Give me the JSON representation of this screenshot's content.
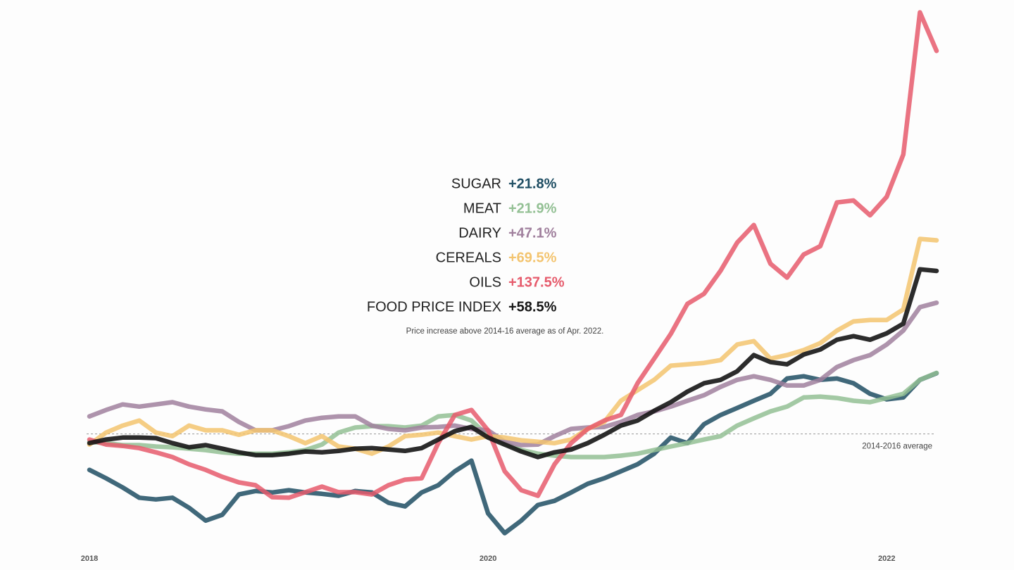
{
  "chart_data": {
    "type": "line",
    "subtitle": "Price increase above 2014-16 average as of Apr. 2022.",
    "categories": [
      "2018",
      null,
      null,
      null,
      null,
      null,
      null,
      null,
      null,
      null,
      null,
      null,
      null,
      null,
      null,
      null,
      null,
      null,
      null,
      null,
      null,
      null,
      null,
      null,
      "2020",
      null,
      null,
      null,
      null,
      null,
      null,
      null,
      null,
      null,
      null,
      null,
      null,
      null,
      null,
      null,
      null,
      null,
      null,
      null,
      null,
      null,
      null,
      null,
      "2022",
      null,
      null,
      null
    ],
    "ylim": [
      -40,
      155
    ],
    "baseline": {
      "value": 0,
      "label": "2014-2016 average"
    },
    "series": [
      {
        "name": "SUGAR",
        "color": "#1f4e63",
        "values": [
          -12.9,
          -15.9,
          -19.2,
          -22.9,
          -23.5,
          -22.9,
          -26.5,
          -31.1,
          -29.0,
          -21.7,
          -20.5,
          -21.0,
          -20.2,
          -21.0,
          -21.5,
          -22.2,
          -20.5,
          -21.0,
          -24.7,
          -26.0,
          -21.0,
          -18.4,
          -13.4,
          -9.6,
          -28.5,
          -35.6,
          -31.1,
          -25.5,
          -24.0,
          -21.0,
          -17.9,
          -15.9,
          -13.4,
          -10.9,
          -7.1,
          -1.3,
          -3.3,
          3.5,
          6.8,
          9.3,
          11.9,
          14.4,
          19.9,
          20.7,
          19.4,
          19.9,
          18.2,
          14.4,
          12.4,
          13.1,
          19.4,
          21.8
        ],
        "value_labels": [
          null,
          null,
          null,
          null,
          null,
          null,
          null,
          null,
          null,
          null,
          null,
          null,
          null,
          null,
          null,
          null,
          null,
          null,
          null,
          null,
          null,
          null,
          null,
          null,
          null,
          null,
          null,
          null,
          null,
          null,
          null,
          null,
          null,
          null,
          null,
          null,
          null,
          null,
          null,
          null,
          null,
          null,
          null,
          null,
          null,
          null,
          null,
          null,
          null,
          null,
          null,
          "+21.8%"
        ]
      },
      {
        "name": "MEAT",
        "color": "#93c094",
        "values": [
          -2.8,
          -3.3,
          -4.0,
          -4.0,
          -4.5,
          -4.8,
          -5.3,
          -5.8,
          -6.6,
          -7.1,
          -7.1,
          -7.1,
          -6.6,
          -5.8,
          -3.8,
          0.5,
          2.3,
          2.8,
          2.8,
          2.3,
          3.0,
          6.3,
          6.8,
          4.8,
          -0.8,
          -3.3,
          -5.8,
          -7.1,
          -7.8,
          -8.3,
          -8.3,
          -8.3,
          -7.8,
          -7.1,
          -5.8,
          -4.5,
          -3.3,
          -2.0,
          -0.8,
          3.0,
          5.6,
          8.1,
          9.8,
          13.1,
          13.4,
          12.9,
          11.9,
          11.4,
          12.9,
          14.4,
          19.4,
          21.9
        ],
        "value_labels": [
          null,
          null,
          null,
          null,
          null,
          null,
          null,
          null,
          null,
          null,
          null,
          null,
          null,
          null,
          null,
          null,
          null,
          null,
          null,
          null,
          null,
          null,
          null,
          null,
          null,
          null,
          null,
          null,
          null,
          null,
          null,
          null,
          null,
          null,
          null,
          null,
          null,
          null,
          null,
          null,
          null,
          null,
          null,
          null,
          null,
          null,
          null,
          null,
          null,
          null,
          null,
          "+21.9%"
        ]
      },
      {
        "name": "DAIRY",
        "color": "#a0809d",
        "values": [
          6.3,
          8.6,
          10.6,
          9.8,
          10.6,
          11.4,
          9.8,
          8.8,
          8.1,
          4.3,
          1.3,
          1.3,
          2.8,
          4.8,
          5.8,
          6.3,
          6.3,
          3.0,
          1.8,
          1.3,
          2.3,
          2.5,
          3.0,
          1.8,
          1.3,
          -2.8,
          -4.0,
          -3.8,
          -0.8,
          1.8,
          2.3,
          2.5,
          4.3,
          6.8,
          8.1,
          9.8,
          11.9,
          13.9,
          16.9,
          19.4,
          20.7,
          19.4,
          17.4,
          17.4,
          19.4,
          24.0,
          26.5,
          28.3,
          32.1,
          37.1,
          45.5,
          47.1
        ],
        "value_labels": [
          null,
          null,
          null,
          null,
          null,
          null,
          null,
          null,
          null,
          null,
          null,
          null,
          null,
          null,
          null,
          null,
          null,
          null,
          null,
          null,
          null,
          null,
          null,
          null,
          null,
          null,
          null,
          null,
          null,
          null,
          null,
          null,
          null,
          null,
          null,
          null,
          null,
          null,
          null,
          null,
          null,
          null,
          null,
          null,
          null,
          null,
          null,
          null,
          null,
          null,
          null,
          "+47.1%"
        ]
      },
      {
        "name": "CEREALS",
        "color": "#f3c46f",
        "values": [
          -3.8,
          0.5,
          3.0,
          4.8,
          0.5,
          -0.8,
          3.0,
          1.3,
          1.3,
          -0.3,
          1.3,
          1.3,
          -0.8,
          -3.3,
          -0.8,
          -4.5,
          -5.3,
          -7.1,
          -4.5,
          -0.8,
          -0.3,
          0.5,
          -0.8,
          -2.0,
          -0.8,
          -1.3,
          -2.3,
          -2.8,
          -3.3,
          -2.0,
          1.8,
          4.3,
          11.9,
          15.7,
          19.4,
          24.5,
          25.0,
          25.5,
          26.5,
          32.1,
          33.3,
          27.0,
          28.3,
          30.1,
          32.6,
          37.1,
          40.4,
          40.9,
          40.9,
          44.7,
          70.0,
          69.5
        ],
        "value_labels": [
          null,
          null,
          null,
          null,
          null,
          null,
          null,
          null,
          null,
          null,
          null,
          null,
          null,
          null,
          null,
          null,
          null,
          null,
          null,
          null,
          null,
          null,
          null,
          null,
          null,
          null,
          null,
          null,
          null,
          null,
          null,
          null,
          null,
          null,
          null,
          null,
          null,
          null,
          null,
          null,
          null,
          null,
          null,
          null,
          null,
          null,
          null,
          null,
          null,
          null,
          null,
          "+69.5%"
        ]
      },
      {
        "name": "OILS",
        "color": "#e65b6c",
        "values": [
          -2.0,
          -3.8,
          -4.3,
          -5.1,
          -6.6,
          -8.3,
          -10.9,
          -12.9,
          -15.4,
          -17.4,
          -18.4,
          -22.7,
          -22.9,
          -20.9,
          -18.9,
          -20.9,
          -20.9,
          -21.7,
          -18.4,
          -16.4,
          -15.9,
          -3.3,
          6.8,
          8.6,
          1.3,
          -13.4,
          -20.2,
          -22.2,
          -10.9,
          -3.3,
          1.8,
          4.8,
          6.8,
          18.2,
          27.0,
          35.9,
          46.7,
          50.3,
          58.6,
          68.7,
          75.0,
          61.1,
          56.1,
          64.4,
          67.4,
          83.1,
          83.8,
          78.5,
          85.1,
          100.3,
          151.3,
          137.5
        ],
        "value_labels": [
          null,
          null,
          null,
          null,
          null,
          null,
          null,
          null,
          null,
          null,
          null,
          null,
          null,
          null,
          null,
          null,
          null,
          null,
          null,
          null,
          null,
          null,
          null,
          null,
          null,
          null,
          null,
          null,
          null,
          null,
          null,
          null,
          null,
          null,
          null,
          null,
          null,
          null,
          null,
          null,
          null,
          null,
          null,
          null,
          null,
          null,
          null,
          null,
          null,
          null,
          null,
          "+137.5%"
        ]
      },
      {
        "name": "FOOD PRICE INDEX",
        "color": "#151515",
        "values": [
          -3.3,
          -2.0,
          -1.3,
          -1.3,
          -1.5,
          -3.3,
          -4.8,
          -4.0,
          -5.3,
          -6.6,
          -7.6,
          -7.6,
          -7.1,
          -6.3,
          -6.6,
          -6.1,
          -5.3,
          -5.1,
          -5.6,
          -6.1,
          -5.1,
          -2.0,
          1.0,
          2.5,
          -1.3,
          -3.8,
          -6.3,
          -8.3,
          -6.6,
          -5.6,
          -3.3,
          -0.3,
          3.0,
          4.8,
          8.3,
          11.4,
          15.2,
          18.2,
          19.4,
          22.5,
          28.3,
          25.8,
          25.0,
          28.5,
          30.3,
          33.8,
          35.1,
          33.8,
          36.1,
          39.6,
          59.1,
          58.5
        ],
        "value_labels": [
          null,
          null,
          null,
          null,
          null,
          null,
          null,
          null,
          null,
          null,
          null,
          null,
          null,
          null,
          null,
          null,
          null,
          null,
          null,
          null,
          null,
          null,
          null,
          null,
          null,
          null,
          null,
          null,
          null,
          null,
          null,
          null,
          null,
          null,
          null,
          null,
          null,
          null,
          null,
          null,
          null,
          null,
          null,
          null,
          null,
          null,
          null,
          null,
          null,
          null,
          null,
          "+58.5%"
        ]
      }
    ]
  }
}
